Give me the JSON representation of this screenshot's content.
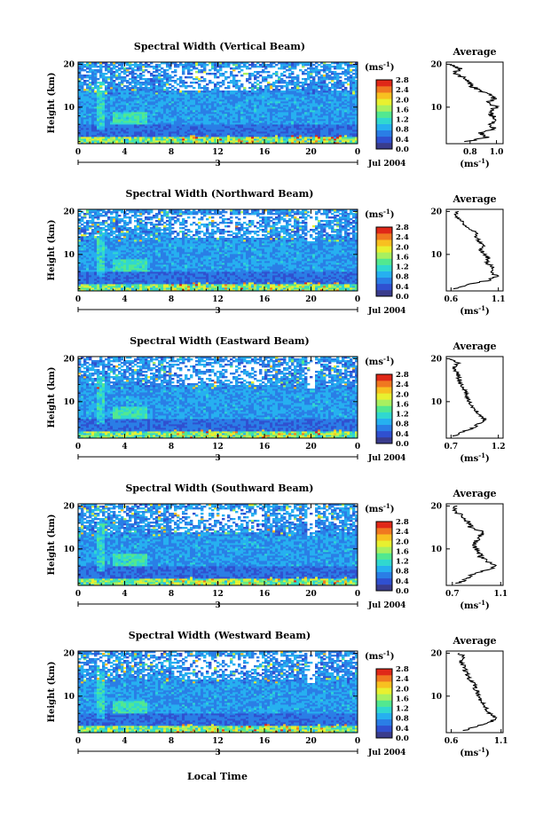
{
  "figure": {
    "xlabel_bottom": "Local Time",
    "date_label": "Jul 2004",
    "day_label": "3",
    "ylabel": "Height (km)",
    "unit_label": "(ms",
    "unit_exp": "-1",
    "avg_title": "Average",
    "colorbar_ticks": [
      "0.0",
      "0.4",
      "0.8",
      "1.2",
      "1.6",
      "2.0",
      "2.4",
      "2.8"
    ],
    "colorbar_colors": [
      "#3a3c8c",
      "#3050d0",
      "#2a7ee6",
      "#26b0f0",
      "#30d8d0",
      "#52e890",
      "#a8f060",
      "#e8f030",
      "#f8c020",
      "#f07820",
      "#e02818"
    ]
  },
  "chart_data": [
    {
      "type": "heatmap",
      "title": "Spectral Width (Vertical Beam)",
      "x_ticks": [
        "0",
        "4",
        "8",
        "12",
        "16",
        "20",
        "0"
      ],
      "xlim": [
        0,
        24
      ],
      "y_ticks": [
        "20",
        "10"
      ],
      "ylim": [
        1.5,
        20.5
      ],
      "color_range": [
        0.0,
        2.8
      ],
      "average_profile": {
        "title": "Average",
        "xlabel": "(ms-1)",
        "x_ticks": [
          "0.8",
          "1.0"
        ],
        "xlim": [
          0.62,
          1.05
        ],
        "y_ticks": [
          "20",
          "10"
        ],
        "height_km": [
          2,
          3,
          4,
          5,
          6,
          7,
          8,
          9,
          10,
          11,
          12,
          13,
          14,
          15,
          16,
          17,
          18,
          19,
          20
        ],
        "values": [
          0.78,
          0.92,
          0.88,
          0.99,
          0.95,
          1.0,
          0.97,
          0.94,
          1.0,
          0.93,
          0.99,
          0.94,
          0.86,
          0.81,
          0.78,
          0.74,
          0.68,
          0.72,
          0.66
        ]
      }
    },
    {
      "type": "heatmap",
      "title": "Spectral Width (Northward Beam)",
      "x_ticks": [
        "0",
        "4",
        "8",
        "12",
        "16",
        "20",
        "0"
      ],
      "xlim": [
        0,
        24
      ],
      "y_ticks": [
        "20",
        "10"
      ],
      "ylim": [
        1.5,
        20.5
      ],
      "color_range": [
        0.0,
        2.8
      ],
      "average_profile": {
        "title": "Average",
        "xlabel": "(ms-1)",
        "x_ticks": [
          "0.6",
          "1.1"
        ],
        "xlim": [
          0.55,
          1.15
        ],
        "y_ticks": [
          "20",
          "10"
        ],
        "height_km": [
          2,
          3,
          4,
          5,
          6,
          7,
          8,
          9,
          10,
          11,
          12,
          13,
          14,
          15,
          16,
          17,
          18,
          19,
          20
        ],
        "values": [
          0.65,
          0.78,
          1.0,
          1.08,
          1.02,
          1.05,
          0.98,
          1.0,
          0.95,
          0.92,
          0.94,
          0.9,
          0.86,
          0.88,
          0.8,
          0.74,
          0.7,
          0.63,
          0.68
        ]
      }
    },
    {
      "type": "heatmap",
      "title": "Spectral Width (Eastward Beam)",
      "x_ticks": [
        "0",
        "4",
        "8",
        "12",
        "16",
        "20",
        "0"
      ],
      "xlim": [
        0,
        24
      ],
      "y_ticks": [
        "20",
        "10"
      ],
      "ylim": [
        1.5,
        20.5
      ],
      "color_range": [
        0.0,
        2.8
      ],
      "average_profile": {
        "title": "Average",
        "xlabel": "(ms-1)",
        "x_ticks": [
          "0.7",
          "1.2"
        ],
        "xlim": [
          0.65,
          1.25
        ],
        "y_ticks": [
          "20",
          "10"
        ],
        "height_km": [
          2,
          3,
          4,
          5,
          6,
          7,
          8,
          9,
          10,
          11,
          12,
          13,
          14,
          15,
          16,
          17,
          18,
          19,
          20
        ],
        "values": [
          0.74,
          0.82,
          0.95,
          1.0,
          1.06,
          0.98,
          0.96,
          0.92,
          0.9,
          0.87,
          0.86,
          0.84,
          0.8,
          0.79,
          0.78,
          0.76,
          0.73,
          0.78,
          0.7
        ]
      }
    },
    {
      "type": "heatmap",
      "title": "Spectral Width (Southward Beam)",
      "x_ticks": [
        "0",
        "4",
        "8",
        "12",
        "16",
        "20",
        "0"
      ],
      "xlim": [
        0,
        24
      ],
      "y_ticks": [
        "20",
        "10"
      ],
      "ylim": [
        1.5,
        20.5
      ],
      "color_range": [
        0.0,
        2.8
      ],
      "average_profile": {
        "title": "Average",
        "xlabel": "(ms-1)",
        "x_ticks": [
          "0.7",
          "1.1"
        ],
        "xlim": [
          0.65,
          1.12
        ],
        "y_ticks": [
          "20",
          "10"
        ],
        "height_km": [
          2,
          3,
          4,
          5,
          6,
          7,
          8,
          9,
          10,
          11,
          12,
          13,
          14,
          15,
          16,
          17,
          18,
          19,
          20
        ],
        "values": [
          0.75,
          0.82,
          0.86,
          0.96,
          1.08,
          1.0,
          0.94,
          0.92,
          0.9,
          0.88,
          0.9,
          0.93,
          0.95,
          0.85,
          0.84,
          0.8,
          0.76,
          0.7,
          0.74
        ]
      }
    },
    {
      "type": "heatmap",
      "title": "Spectral Width (Westward Beam)",
      "x_ticks": [
        "0",
        "4",
        "8",
        "12",
        "16",
        "20",
        "0"
      ],
      "xlim": [
        0,
        24
      ],
      "y_ticks": [
        "20",
        "10"
      ],
      "ylim": [
        1.5,
        20.5
      ],
      "color_range": [
        0.0,
        2.8
      ],
      "average_profile": {
        "title": "Average",
        "xlabel": "(ms-1)",
        "x_ticks": [
          "0.6",
          "1.1"
        ],
        "xlim": [
          0.55,
          1.12
        ],
        "y_ticks": [
          "20",
          "10"
        ],
        "height_km": [
          2,
          3,
          4,
          5,
          6,
          7,
          8,
          9,
          10,
          11,
          12,
          13,
          14,
          15,
          16,
          17,
          18,
          19,
          20
        ],
        "values": [
          0.74,
          0.85,
          1.0,
          1.05,
          0.98,
          0.95,
          0.92,
          0.9,
          0.88,
          0.86,
          0.84,
          0.82,
          0.78,
          0.76,
          0.74,
          0.72,
          0.7,
          0.73,
          0.68
        ]
      }
    }
  ]
}
